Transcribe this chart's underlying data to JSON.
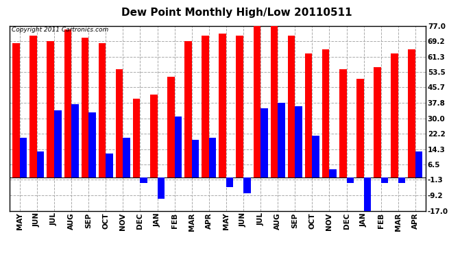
{
  "title": "Dew Point Monthly High/Low 20110511",
  "copyright": "Copyright 2011 Cartronics.com",
  "months": [
    "MAY",
    "JUN",
    "JUL",
    "AUG",
    "SEP",
    "OCT",
    "NOV",
    "DEC",
    "JAN",
    "FEB",
    "MAR",
    "APR",
    "MAY",
    "JUN",
    "JUL",
    "AUG",
    "SEP",
    "OCT",
    "NOV",
    "DEC",
    "JAN",
    "FEB",
    "MAR",
    "APR"
  ],
  "highs": [
    68,
    72,
    69,
    75,
    71,
    68,
    55,
    40,
    42,
    51,
    69,
    72,
    73,
    72,
    77,
    77,
    72,
    63,
    65,
    55,
    50,
    56,
    63,
    65
  ],
  "lows": [
    20,
    13,
    34,
    37,
    33,
    12,
    20,
    -3,
    -11,
    31,
    19,
    20,
    -5,
    -8,
    35,
    38,
    36,
    21,
    4,
    -3,
    -18,
    -3,
    -3,
    13
  ],
  "yticks": [
    77.0,
    69.2,
    61.3,
    53.5,
    45.7,
    37.8,
    30.0,
    22.2,
    14.3,
    6.5,
    -1.3,
    -9.2,
    -17.0
  ],
  "ymin": -17.0,
  "ymax": 77.0,
  "bar_color_high": "#FF0000",
  "bar_color_low": "#0000FF",
  "background_color": "#FFFFFF",
  "grid_color": "#AAAAAA",
  "title_fontsize": 11,
  "tick_fontsize": 7.5,
  "bar_width": 0.42,
  "fig_width": 6.9,
  "fig_height": 3.75,
  "dpi": 100
}
